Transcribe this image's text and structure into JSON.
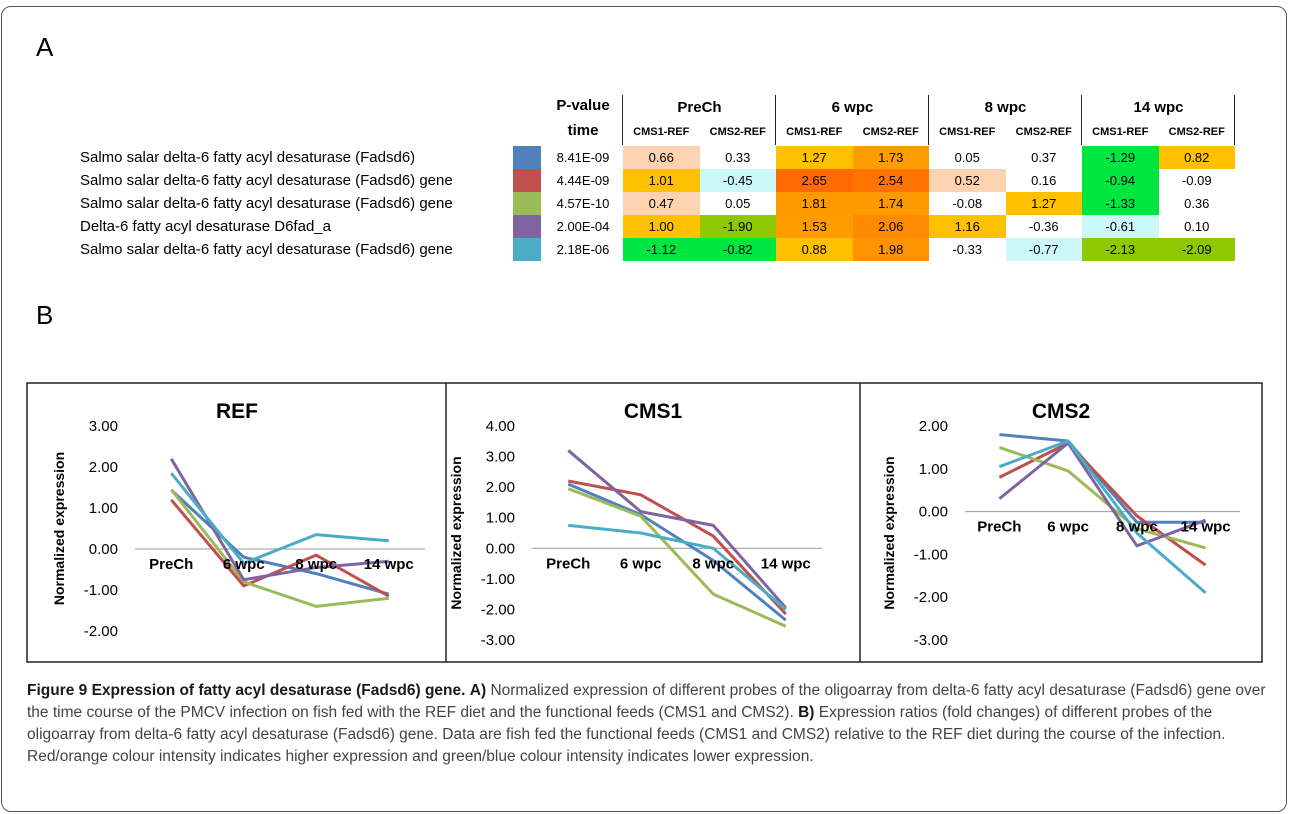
{
  "panel_labels": {
    "a": "A",
    "b": "B"
  },
  "table": {
    "pvalue_header": "P-value",
    "time_header": "time",
    "groups": [
      "PreCh",
      "6 wpc",
      "8 wpc",
      "14 wpc"
    ],
    "subheaders": [
      "CMS1-REF",
      "CMS2-REF",
      "CMS1-REF",
      "CMS2-REF",
      "CMS1-REF",
      "CMS2-REF",
      "CMS1-REF",
      "CMS2-REF"
    ],
    "rows": [
      {
        "label": "Salmo salar delta-6 fatty acyl desaturase (Fadsd6)",
        "color": "#4f81bd",
        "pvalue": "8.41E-09",
        "cells": [
          "0.66",
          "0.33",
          "1.27",
          "1.73",
          "0.05",
          "0.37",
          "-1.29",
          "0.82"
        ],
        "cell_colors": [
          "#fbd3b0",
          "#ffffff",
          "#ffc000",
          "#ff9c00",
          "#ffffff",
          "#ffffff",
          "#00e640",
          "#ffc000"
        ]
      },
      {
        "label": "Salmo salar delta-6 fatty acyl desaturase (Fadsd6) gene",
        "color": "#c0504d",
        "pvalue": "4.44E-09",
        "cells": [
          "1.01",
          "-0.45",
          "2.65",
          "2.54",
          "0.52",
          "0.16",
          "-0.94",
          "-0.09"
        ],
        "cell_colors": [
          "#ffc000",
          "#ccf8fa",
          "#ff6a00",
          "#ff7300",
          "#fbd3b0",
          "#ffffff",
          "#00e640",
          "#ffffff"
        ]
      },
      {
        "label": "Salmo salar delta-6 fatty acyl desaturase (Fadsd6) gene",
        "color": "#9bbb59",
        "pvalue": "4.57E-10",
        "cells": [
          "0.47",
          "0.05",
          "1.81",
          "1.74",
          "-0.08",
          "1.27",
          "-1.33",
          "0.36"
        ],
        "cell_colors": [
          "#fbd3b0",
          "#ffffff",
          "#ff9900",
          "#ff9900",
          "#ffffff",
          "#ffc000",
          "#00e640",
          "#ffffff"
        ]
      },
      {
        "label": "Delta-6 fatty acyl desaturase D6fad_a",
        "color": "#8064a2",
        "pvalue": "2.00E-04",
        "cells": [
          "1.00",
          "-1.90",
          "1.53",
          "2.06",
          "1.16",
          "-0.36",
          "-0.61",
          "0.10"
        ],
        "cell_colors": [
          "#ffc000",
          "#8dc800",
          "#ff9c00",
          "#ff8c00",
          "#ffc000",
          "#ffffff",
          "#ccf8fa",
          "#ffffff"
        ]
      },
      {
        "label": "Salmo salar delta-6 fatty acyl desaturase (Fadsd6) gene",
        "color": "#4bacc6",
        "pvalue": "2.18E-06",
        "cells": [
          "-1.12",
          "-0.82",
          "0.88",
          "1.98",
          "-0.33",
          "-0.77",
          "-2.13",
          "-2.09"
        ],
        "cell_colors": [
          "#00e640",
          "#00e640",
          "#ffc000",
          "#ff9400",
          "#ffffff",
          "#ccf8fa",
          "#8dc800",
          "#8dc800"
        ]
      }
    ]
  },
  "chart_data": [
    {
      "type": "line",
      "title": "REF",
      "y_label": "Normalized expression",
      "categories": [
        "PreCh",
        "6 wpc",
        "8 wpc",
        "14 wpc"
      ],
      "ylim": [
        -2,
        3
      ],
      "yticks": [
        {
          "value": -2,
          "label": "-2.00"
        },
        {
          "value": -1,
          "label": "-1.00"
        },
        {
          "value": 0,
          "label": "0.00"
        },
        {
          "value": 1,
          "label": "1.00"
        },
        {
          "value": 2,
          "label": "2.00"
        },
        {
          "value": 3,
          "label": "3.00"
        }
      ],
      "series": [
        {
          "color": "#4f81bd",
          "values": [
            1.44,
            -0.2,
            -0.6,
            -1.1
          ]
        },
        {
          "color": "#c0504d",
          "values": [
            1.2,
            -0.9,
            -0.15,
            -1.15
          ]
        },
        {
          "color": "#9bbb59",
          "values": [
            1.45,
            -0.8,
            -1.4,
            -1.2
          ]
        },
        {
          "color": "#8064a2",
          "values": [
            2.2,
            -0.75,
            -0.45,
            -0.3
          ]
        },
        {
          "color": "#4bacc6",
          "values": [
            1.85,
            -0.35,
            0.35,
            0.2
          ]
        }
      ]
    },
    {
      "type": "line",
      "title": "CMS1",
      "y_label": "Normalized expression",
      "categories": [
        "PreCh",
        "6 wpc",
        "8 wpc",
        "14 wpc"
      ],
      "ylim": [
        -3,
        4
      ],
      "yticks": [
        {
          "value": -3,
          "label": "-3.00"
        },
        {
          "value": -2,
          "label": "-2.00"
        },
        {
          "value": -1,
          "label": "-1.00"
        },
        {
          "value": 0,
          "label": "0.00"
        },
        {
          "value": 1,
          "label": "1.00"
        },
        {
          "value": 2,
          "label": "2.00"
        },
        {
          "value": 3,
          "label": "3.00"
        },
        {
          "value": 4,
          "label": "4.00"
        }
      ],
      "series": [
        {
          "color": "#4f81bd",
          "values": [
            2.1,
            1.1,
            -0.4,
            -2.35
          ]
        },
        {
          "color": "#c0504d",
          "values": [
            2.2,
            1.75,
            0.4,
            -2.15
          ]
        },
        {
          "color": "#9bbb59",
          "values": [
            1.95,
            1.05,
            -1.5,
            -2.55
          ]
        },
        {
          "color": "#8064a2",
          "values": [
            3.2,
            1.2,
            0.75,
            -1.95
          ]
        },
        {
          "color": "#4bacc6",
          "values": [
            0.75,
            0.5,
            0.0,
            -2.0
          ]
        }
      ]
    },
    {
      "type": "line",
      "title": "CMS2",
      "y_label": "Normalized expression",
      "categories": [
        "PreCh",
        "6 wpc",
        "8 wpc",
        "14 wpc"
      ],
      "ylim": [
        -3,
        2
      ],
      "yticks": [
        {
          "value": -3,
          "label": "-3.00"
        },
        {
          "value": -2,
          "label": "-2.00"
        },
        {
          "value": -1,
          "label": "-1.00"
        },
        {
          "value": 0,
          "label": "0.00"
        },
        {
          "value": 1,
          "label": "1.00"
        },
        {
          "value": 2,
          "label": "2.00"
        }
      ],
      "series": [
        {
          "color": "#4f81bd",
          "values": [
            1.8,
            1.65,
            -0.25,
            -0.25
          ]
        },
        {
          "color": "#c0504d",
          "values": [
            0.8,
            1.6,
            -0.1,
            -1.25
          ]
        },
        {
          "color": "#9bbb59",
          "values": [
            1.5,
            0.95,
            -0.4,
            -0.85
          ]
        },
        {
          "color": "#8064a2",
          "values": [
            0.3,
            1.6,
            -0.8,
            -0.2
          ]
        },
        {
          "color": "#4bacc6",
          "values": [
            1.05,
            1.65,
            -0.5,
            -1.9
          ]
        }
      ]
    }
  ],
  "caption": {
    "title": "Figure 9 Expression of fatty acyl desaturase (Fadsd6) gene.",
    "a_label": "A)",
    "a_text": "Normalized expression of different probes of the oligoarray from delta-6 fatty acyl desaturase (Fadsd6) gene over the time course of the PMCV infection on fish fed with the REF diet and the functional feeds (CMS1 and CMS2).",
    "b_label": "B)",
    "b_text": "Expression ratios (fold changes) of different probes of the oligoarray from delta-6 fatty acyl desaturase (Fadsd6) gene. Data are fish fed the functional feeds (CMS1 and CMS2) relative to the REF diet during the course of the infection. Red/orange colour intensity indicates higher expression and green/blue colour intensity indicates lower expression."
  }
}
